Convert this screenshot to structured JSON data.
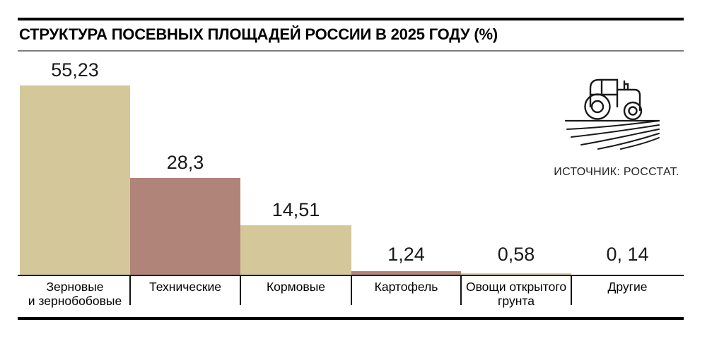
{
  "title": "СТРУКТУРА ПОСЕВНЫХ ПЛОЩАДЕЙ РОССИИ В 2025 ГОДУ (%)",
  "source": "ИСТОЧНИК: РОССТАТ.",
  "icons": {
    "tractor": "tractor-field-icon"
  },
  "colors": {
    "bar_tan": "#d4c89b",
    "bar_mauve": "#b08478",
    "rule_black": "#000000",
    "rule_gray": "#7d7d7d",
    "text": "#1a1a1a"
  },
  "chart_data": {
    "type": "bar",
    "title": "СТРУКТУРА ПОСЕВНЫХ ПЛОЩАДЕЙ РОССИИ В 2025 ГОДУ (%)",
    "categories": [
      "Зерновые и зернобобовые",
      "Технические",
      "Кормовые",
      "Картофель",
      "Овощи открытого грунта",
      "Другие"
    ],
    "values": [
      55.23,
      28.3,
      14.51,
      1.24,
      0.58,
      0.14
    ],
    "value_labels": [
      "55,23",
      "28,3",
      "14,51",
      "1,24",
      "0,58",
      "0, 14"
    ],
    "category_labels_display": [
      "Зерновые\nи зернобобовые",
      "Технические",
      "Кормовые",
      "Картофель",
      "Овощи открытого\nгрунта",
      "Другие"
    ],
    "bar_colors": [
      "#d4c89b",
      "#b08478",
      "#d4c89b",
      "#b08478",
      "#d4c89b",
      "#b08478"
    ],
    "xlabel": "",
    "ylabel": "",
    "unit": "%",
    "ylim": [
      0,
      57
    ],
    "grid": false,
    "legend": false,
    "source_note": "ИСТОЧНИК: РОССТАТ."
  }
}
